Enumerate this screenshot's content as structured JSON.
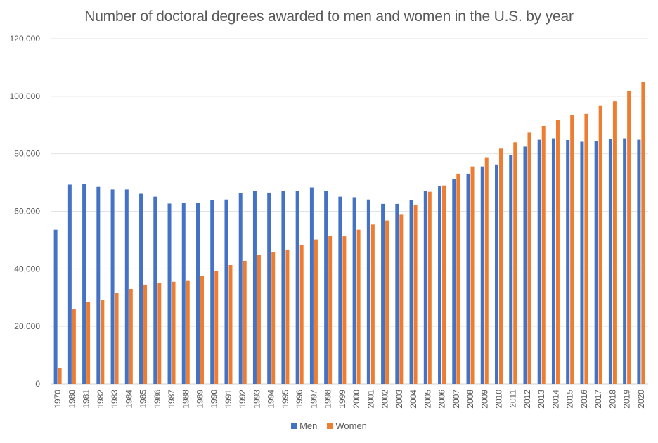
{
  "chart_data": {
    "type": "bar",
    "title": "Number of doctoral degrees awarded to men and women in the U.S. by year",
    "xlabel": "",
    "ylabel": "",
    "ylim": [
      0,
      120000
    ],
    "yticks": [
      0,
      20000,
      40000,
      60000,
      80000,
      100000,
      120000
    ],
    "ytick_labels": [
      "0",
      "20,000",
      "40,000",
      "60,000",
      "80,000",
      "100,000",
      "120,000"
    ],
    "grid": true,
    "legend_position": "bottom",
    "categories": [
      "1970",
      "1980",
      "1981",
      "1982",
      "1983",
      "1984",
      "1985",
      "1986",
      "1987",
      "1988",
      "1989",
      "1990",
      "1991",
      "1992",
      "1993",
      "1994",
      "1995",
      "1996",
      "1997",
      "1998",
      "1999",
      "2000",
      "2001",
      "2002",
      "2003",
      "2004",
      "2005",
      "2006",
      "2007",
      "2008",
      "2009",
      "2010",
      "2011",
      "2012",
      "2013",
      "2014",
      "2015",
      "2016",
      "2017",
      "2018",
      "2019",
      "2020"
    ],
    "series": [
      {
        "name": "Men",
        "color": "#4472C4",
        "values": [
          53600,
          69300,
          69600,
          68500,
          67600,
          67600,
          66100,
          65100,
          62700,
          62900,
          62900,
          63900,
          64100,
          66300,
          67000,
          66500,
          67200,
          67000,
          68300,
          67000,
          65100,
          64900,
          64100,
          62600,
          62600,
          63800,
          67000,
          68700,
          71200,
          73100,
          75600,
          76300,
          79500,
          82500,
          84900,
          85400,
          84800,
          84200,
          84500,
          85100,
          85400,
          84900
        ]
      },
      {
        "name": "Women",
        "color": "#ED7D31",
        "values": [
          5500,
          25900,
          28400,
          29100,
          31600,
          33000,
          34500,
          35000,
          35500,
          36000,
          37400,
          39300,
          41300,
          42800,
          44800,
          45700,
          46700,
          48200,
          50200,
          51400,
          51300,
          53600,
          55400,
          56800,
          58800,
          62200,
          66800,
          69000,
          73100,
          75600,
          78800,
          81800,
          84000,
          87400,
          89700,
          91900,
          93500,
          93900,
          96600,
          98200,
          101700,
          104900
        ]
      }
    ]
  },
  "legend": {
    "items": [
      {
        "label": "Men",
        "color": "#4472C4"
      },
      {
        "label": "Women",
        "color": "#ED7D31"
      }
    ]
  }
}
